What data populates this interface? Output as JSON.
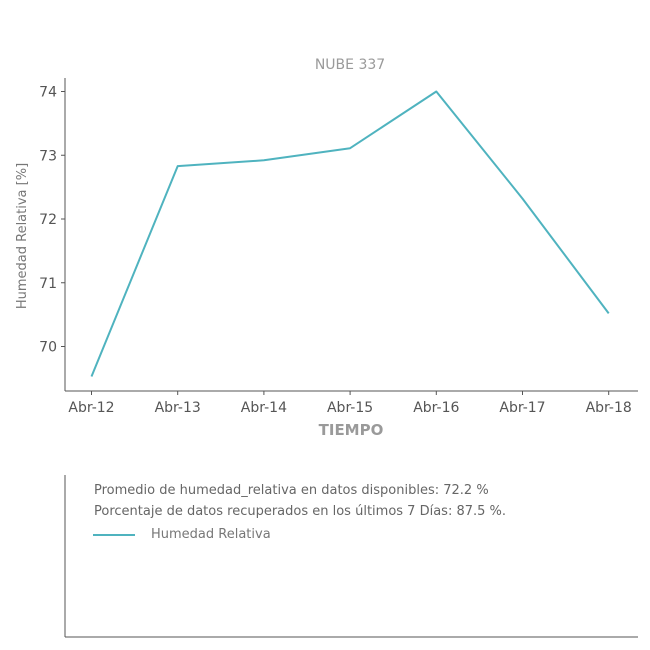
{
  "chart_data": {
    "type": "line",
    "title": "NUBE 337",
    "xlabel": "TIEMPO",
    "ylabel": "Humedad Relativa [%]",
    "categories": [
      "Abr-12",
      "Abr-13",
      "Abr-14",
      "Abr-15",
      "Abr-16",
      "Abr-17",
      "Abr-18"
    ],
    "x": [
      0,
      1,
      2,
      3,
      4,
      5,
      6
    ],
    "y_ticks": [
      70,
      71,
      72,
      73,
      74
    ],
    "ylim": [
      69.3,
      74.2
    ],
    "xlim": [
      0,
      6.3
    ],
    "series": [
      {
        "name": "Humedad Relativa",
        "x": [
          0,
          1,
          2,
          3,
          4,
          5,
          6
        ],
        "values": [
          69.53,
          72.83,
          72.92,
          73.11,
          74.0,
          72.32,
          70.52
        ],
        "color": "#4fb3bf"
      }
    ],
    "grid": false,
    "legend_placement": "bottom-panel"
  },
  "info": {
    "line1": "Promedio de humedad_relativa en datos disponibles: 72.2 %",
    "line2": "Porcentaje de datos recuperados en los últimos 7 Días: 87.5 %."
  },
  "legend": {
    "label": "Humedad Relativa"
  }
}
